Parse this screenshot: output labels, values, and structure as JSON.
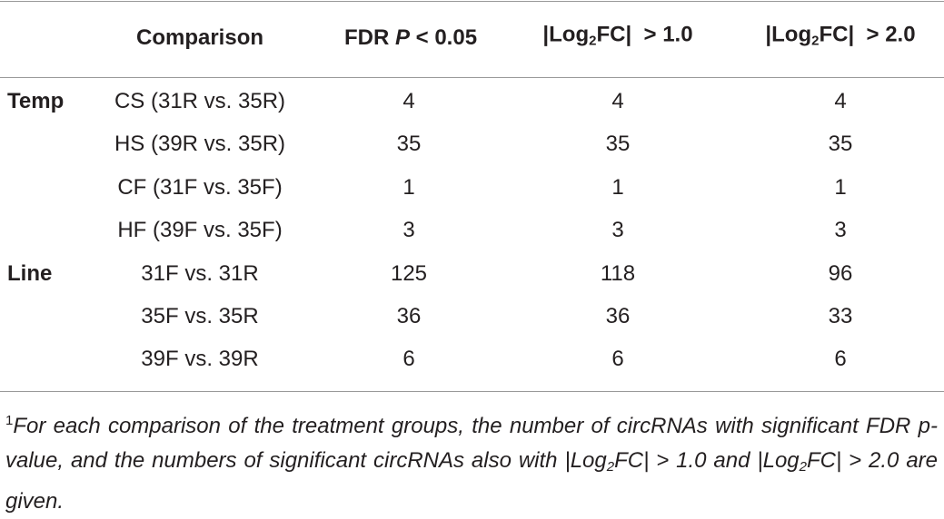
{
  "header": {
    "columns": [
      "Comparison",
      [
        "FDR ",
        "P",
        " < 0.05"
      ],
      [
        "|Log",
        "2",
        "FC|  > 1.0"
      ],
      [
        "|Log",
        "2",
        "FC|  > 2.0"
      ]
    ]
  },
  "groups": [
    {
      "label": "Temp",
      "rows": [
        [
          "CS (31R vs. 35R)",
          4,
          4,
          4
        ],
        [
          "HS (39R vs. 35R)",
          35,
          35,
          35
        ],
        [
          "CF (31F vs. 35F)",
          1,
          1,
          1
        ],
        [
          "HF (39F vs. 35F)",
          3,
          3,
          3
        ]
      ]
    },
    {
      "label": "Line",
      "rows": [
        [
          "31F vs. 31R",
          125,
          118,
          96
        ],
        [
          "35F vs. 35R",
          36,
          36,
          33
        ],
        [
          "39F vs. 39R",
          6,
          6,
          6
        ]
      ]
    }
  ],
  "footnote": [
    "1",
    "For each comparison of the treatment groups, the number of circRNAs with significant FDR p-value, and the numbers of significant circRNAs also with ",
    "|Log",
    "2",
    "FC| > 1.0 and |Log",
    "2",
    "FC| > 2.0 are given."
  ]
}
